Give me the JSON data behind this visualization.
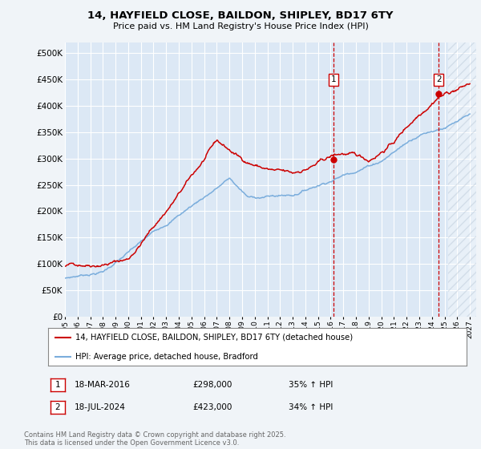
{
  "title": "14, HAYFIELD CLOSE, BAILDON, SHIPLEY, BD17 6TY",
  "subtitle": "Price paid vs. HM Land Registry's House Price Index (HPI)",
  "ylabel_ticks": [
    "£0",
    "£50K",
    "£100K",
    "£150K",
    "£200K",
    "£250K",
    "£300K",
    "£350K",
    "£400K",
    "£450K",
    "£500K"
  ],
  "ytick_values": [
    0,
    50000,
    100000,
    150000,
    200000,
    250000,
    300000,
    350000,
    400000,
    450000,
    500000
  ],
  "ylim": [
    0,
    520000
  ],
  "xlim_start": 1995.0,
  "xlim_end": 2027.5,
  "sale1_date": 2016.21,
  "sale1_price": 298000,
  "sale1_label": "1",
  "sale2_date": 2024.54,
  "sale2_price": 423000,
  "sale2_label": "2",
  "hpi_color": "#7aaddc",
  "price_color": "#cc0000",
  "bg_color": "#f0f4f8",
  "plot_bg": "#dce8f5",
  "grid_color": "#ffffff",
  "legend_line1": "14, HAYFIELD CLOSE, BAILDON, SHIPLEY, BD17 6TY (detached house)",
  "legend_line2": "HPI: Average price, detached house, Bradford",
  "footer": "Contains HM Land Registry data © Crown copyright and database right 2025.\nThis data is licensed under the Open Government Licence v3.0.",
  "xtick_years": [
    1995,
    1996,
    1997,
    1998,
    1999,
    2000,
    2001,
    2002,
    2003,
    2004,
    2005,
    2006,
    2007,
    2008,
    2009,
    2010,
    2011,
    2012,
    2013,
    2014,
    2015,
    2016,
    2017,
    2018,
    2019,
    2020,
    2021,
    2022,
    2023,
    2024,
    2025,
    2026,
    2027
  ],
  "hatch_start": 2025.3
}
